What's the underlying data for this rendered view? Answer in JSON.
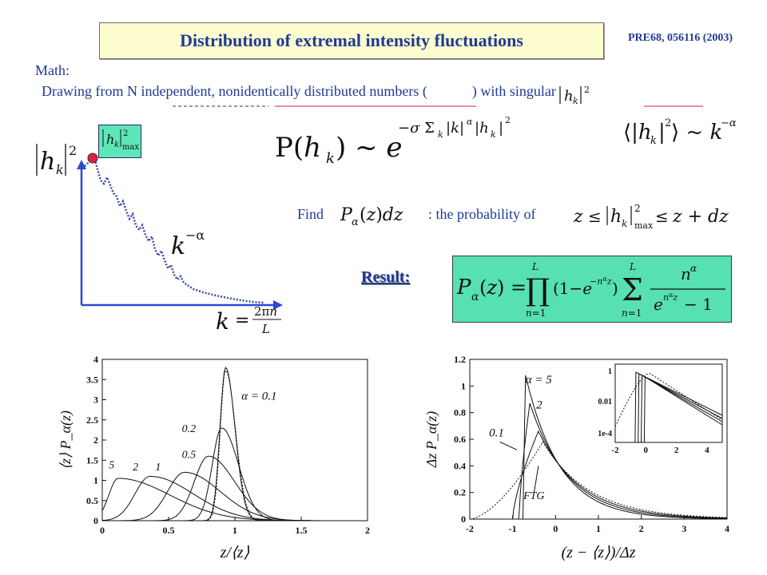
{
  "slide": {
    "title": "Distribution of extremal intensity fluctuations",
    "reference": "PRE68, 056116 (2003)",
    "math_label": "Math:",
    "description": "Drawing from N independent, nonidentically distributed numbers (",
    "description_tail": ") with singular",
    "find_label": "Find",
    "find_text": ": the probability of",
    "result_label": "Result:"
  },
  "equations": {
    "prob": "P(h_k) ~ e^{-σ Σ_k |k|^α |h_k|^2}",
    "mean": "⟨|h_k|^2⟩ ~ k^{-α}",
    "pdf": "P_α(z)dz",
    "event": "z ≤ |h_k|^2_max ≤ z+dz",
    "result": "P_α(z) = Π_{n=1}^{L} (1 - e^{-n^α z}) Σ_{n=1}^{L} n^α / (e^{n^α z} - 1)",
    "k_def": "k = 2πn / L",
    "k_power": "k^{-α}",
    "h_sq": "|h_k|^2",
    "h_max": "|h_k|^2_max"
  },
  "chart_data": [
    {
      "type": "line",
      "xlabel": "z/⟨z⟩",
      "ylabel": "⟨z⟩ P_α(z)",
      "xlim": [
        0,
        2
      ],
      "ylim": [
        0,
        4
      ],
      "x_ticks": [
        "0",
        "0.5",
        "1",
        "1.5",
        "2"
      ],
      "y_ticks": [
        "0",
        "0.5",
        "1",
        "1.5",
        "2",
        "2.5",
        "3",
        "3.5",
        "4"
      ],
      "annotations": [
        "α = 0.1",
        "0.2",
        "0.5",
        "1",
        "2",
        "5"
      ],
      "series": [
        {
          "name": "α = 0.1",
          "peak_x": 0.93,
          "peak_y": 3.8,
          "width_l": 0.06,
          "width_r": 0.1
        },
        {
          "name": "0.2",
          "peak_x": 0.9,
          "peak_y": 2.3,
          "width_l": 0.1,
          "width_r": 0.18
        },
        {
          "name": "0.5",
          "peak_x": 0.8,
          "peak_y": 1.6,
          "width_l": 0.15,
          "width_r": 0.28
        },
        {
          "name": "1",
          "peak_x": 0.62,
          "peak_y": 1.2,
          "width_l": 0.18,
          "width_r": 0.38
        },
        {
          "name": "2",
          "peak_x": 0.36,
          "peak_y": 1.1,
          "width_l": 0.16,
          "width_r": 0.46
        },
        {
          "name": "5",
          "peak_x": 0.12,
          "peak_y": 1.05,
          "width_l": 0.1,
          "width_r": 0.55
        }
      ]
    },
    {
      "type": "line",
      "xlabel": "(z − ⟨z⟩)/Δz",
      "ylabel": "Δz P_α(z)",
      "xlim": [
        -2,
        4
      ],
      "ylim": [
        0,
        1.2
      ],
      "x_ticks": [
        "-2",
        "-1",
        "0",
        "1",
        "2",
        "3",
        "4"
      ],
      "y_ticks": [
        "0",
        "0.2",
        "0.4",
        "0.6",
        "0.8",
        "1",
        "1.2"
      ],
      "annotations": [
        "α = 5",
        "2",
        "0.1",
        "FTG"
      ],
      "series": [
        {
          "name": "α = 5",
          "start_x": -0.75,
          "peak_x": -0.7,
          "peak_y": 1.08,
          "decay": 0.8
        },
        {
          "name": "2",
          "start_x": -0.85,
          "peak_x": -0.6,
          "peak_y": 0.87,
          "decay": 0.9
        },
        {
          "name": "0.1",
          "start_x": -1.0,
          "peak_x": -0.4,
          "peak_y": 0.66,
          "decay": 1.0
        },
        {
          "name": "FTG",
          "start_x": -2.0,
          "peak_x": -0.3,
          "peak_y": 0.58,
          "decay": 1.1
        }
      ],
      "inset": {
        "y_ticks": [
          "1",
          "0.01",
          "1e-4"
        ],
        "x_ticks": [
          "-2",
          "0",
          "2",
          "4"
        ],
        "xlim": [
          -2,
          5
        ]
      }
    }
  ]
}
